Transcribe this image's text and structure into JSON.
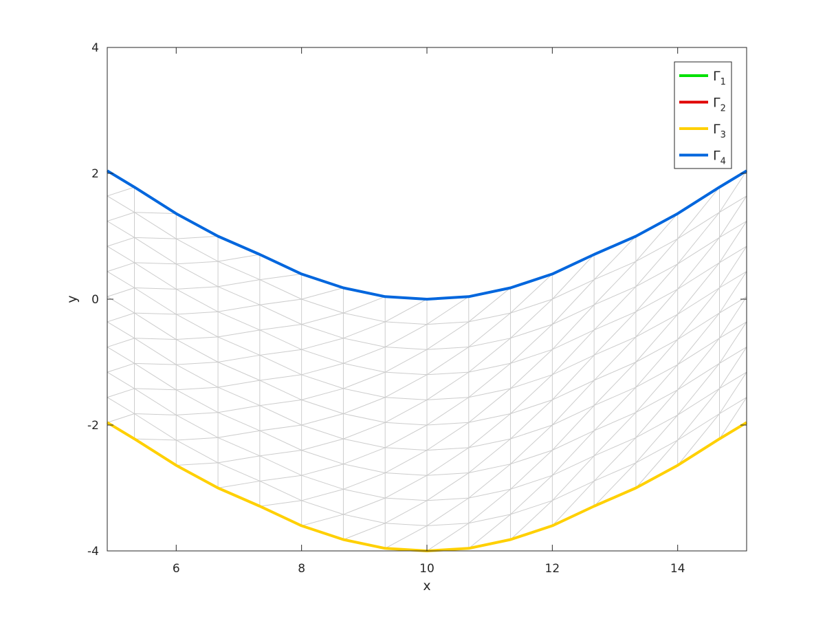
{
  "chart_data": {
    "type": "line",
    "title": "",
    "xlabel": "x",
    "ylabel": "y",
    "xlim": [
      4.9,
      15.1
    ],
    "ylim": [
      -4,
      4
    ],
    "xticks": [
      6,
      8,
      10,
      12,
      14
    ],
    "xtick_labels": [
      "6",
      "8",
      "10",
      "12",
      "14"
    ],
    "yticks": [
      -4,
      -2,
      0,
      2,
      4
    ],
    "ytick_labels": [
      "-4",
      "-2",
      "0",
      "2",
      "4"
    ],
    "grid": false,
    "legend_position": "top-right",
    "mesh": {
      "color": "#cccccc",
      "x_nodes": [
        4.9,
        5.3333,
        6.0,
        6.6667,
        7.3333,
        8.0,
        8.6667,
        9.3333,
        10.0,
        10.6667,
        11.3333,
        12.0,
        12.6667,
        13.3333,
        14.0,
        14.6667,
        15.1
      ],
      "layers": 10
    },
    "series": [
      {
        "name": "Γ1",
        "label_base": "Γ",
        "label_sub": "1",
        "color": "#00e000",
        "x": [],
        "y": []
      },
      {
        "name": "Γ2",
        "label_base": "Γ",
        "label_sub": "2",
        "color": "#e00000",
        "x": [],
        "y": []
      },
      {
        "name": "Γ3",
        "label_base": "Γ",
        "label_sub": "3",
        "color": "#ffd000",
        "x": [
          4.9,
          5.3333,
          6.0,
          6.6667,
          7.3333,
          8.0,
          8.6667,
          9.3333,
          10.0,
          10.6667,
          11.3333,
          12.0,
          12.6667,
          13.3333,
          14.0,
          14.6667,
          15.1
        ],
        "y": [
          -1.96,
          -2.22,
          -2.64,
          -3.0,
          -3.29,
          -3.6,
          -3.82,
          -3.96,
          -4.0,
          -3.96,
          -3.82,
          -3.6,
          -3.29,
          -3.0,
          -2.64,
          -2.22,
          -1.96
        ]
      },
      {
        "name": "Γ4",
        "label_base": "Γ",
        "label_sub": "4",
        "color": "#0066dd",
        "x": [
          4.9,
          5.3333,
          6.0,
          6.6667,
          7.3333,
          8.0,
          8.6667,
          9.3333,
          10.0,
          10.6667,
          11.3333,
          12.0,
          12.6667,
          13.3333,
          14.0,
          14.6667,
          15.1
        ],
        "y": [
          2.04,
          1.78,
          1.36,
          1.0,
          0.71,
          0.4,
          0.18,
          0.04,
          0.0,
          0.04,
          0.18,
          0.4,
          0.71,
          1.0,
          1.36,
          1.78,
          2.04
        ]
      }
    ]
  }
}
